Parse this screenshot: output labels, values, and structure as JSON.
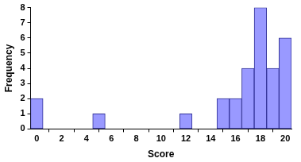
{
  "chart_data": {
    "type": "histogram",
    "x_label": "Score",
    "y_label": "Frequency",
    "bins": [
      -0.5,
      0.5,
      1.5,
      2.5,
      3.5,
      4.5,
      5.5,
      6.5,
      7.5,
      8.5,
      9.5,
      10.5,
      11.5,
      12.5,
      13.5,
      14.5,
      15.5,
      16.5,
      17.5,
      18.5,
      19.5,
      20.5
    ],
    "values": [
      2,
      0,
      0,
      0,
      0,
      1,
      0,
      0,
      0,
      0,
      0,
      0,
      1,
      0,
      0,
      2,
      2,
      4,
      8,
      4,
      6
    ],
    "color": "#9999ff",
    "xlim": [
      -0.5,
      20.5
    ],
    "xticks": [
      0,
      2,
      4,
      6,
      8,
      10,
      12,
      14,
      16,
      18,
      20
    ],
    "ylim": [
      0,
      8
    ],
    "yticks": [
      0,
      1,
      2,
      3,
      4,
      5,
      6,
      7,
      8
    ],
    "grid": false
  }
}
